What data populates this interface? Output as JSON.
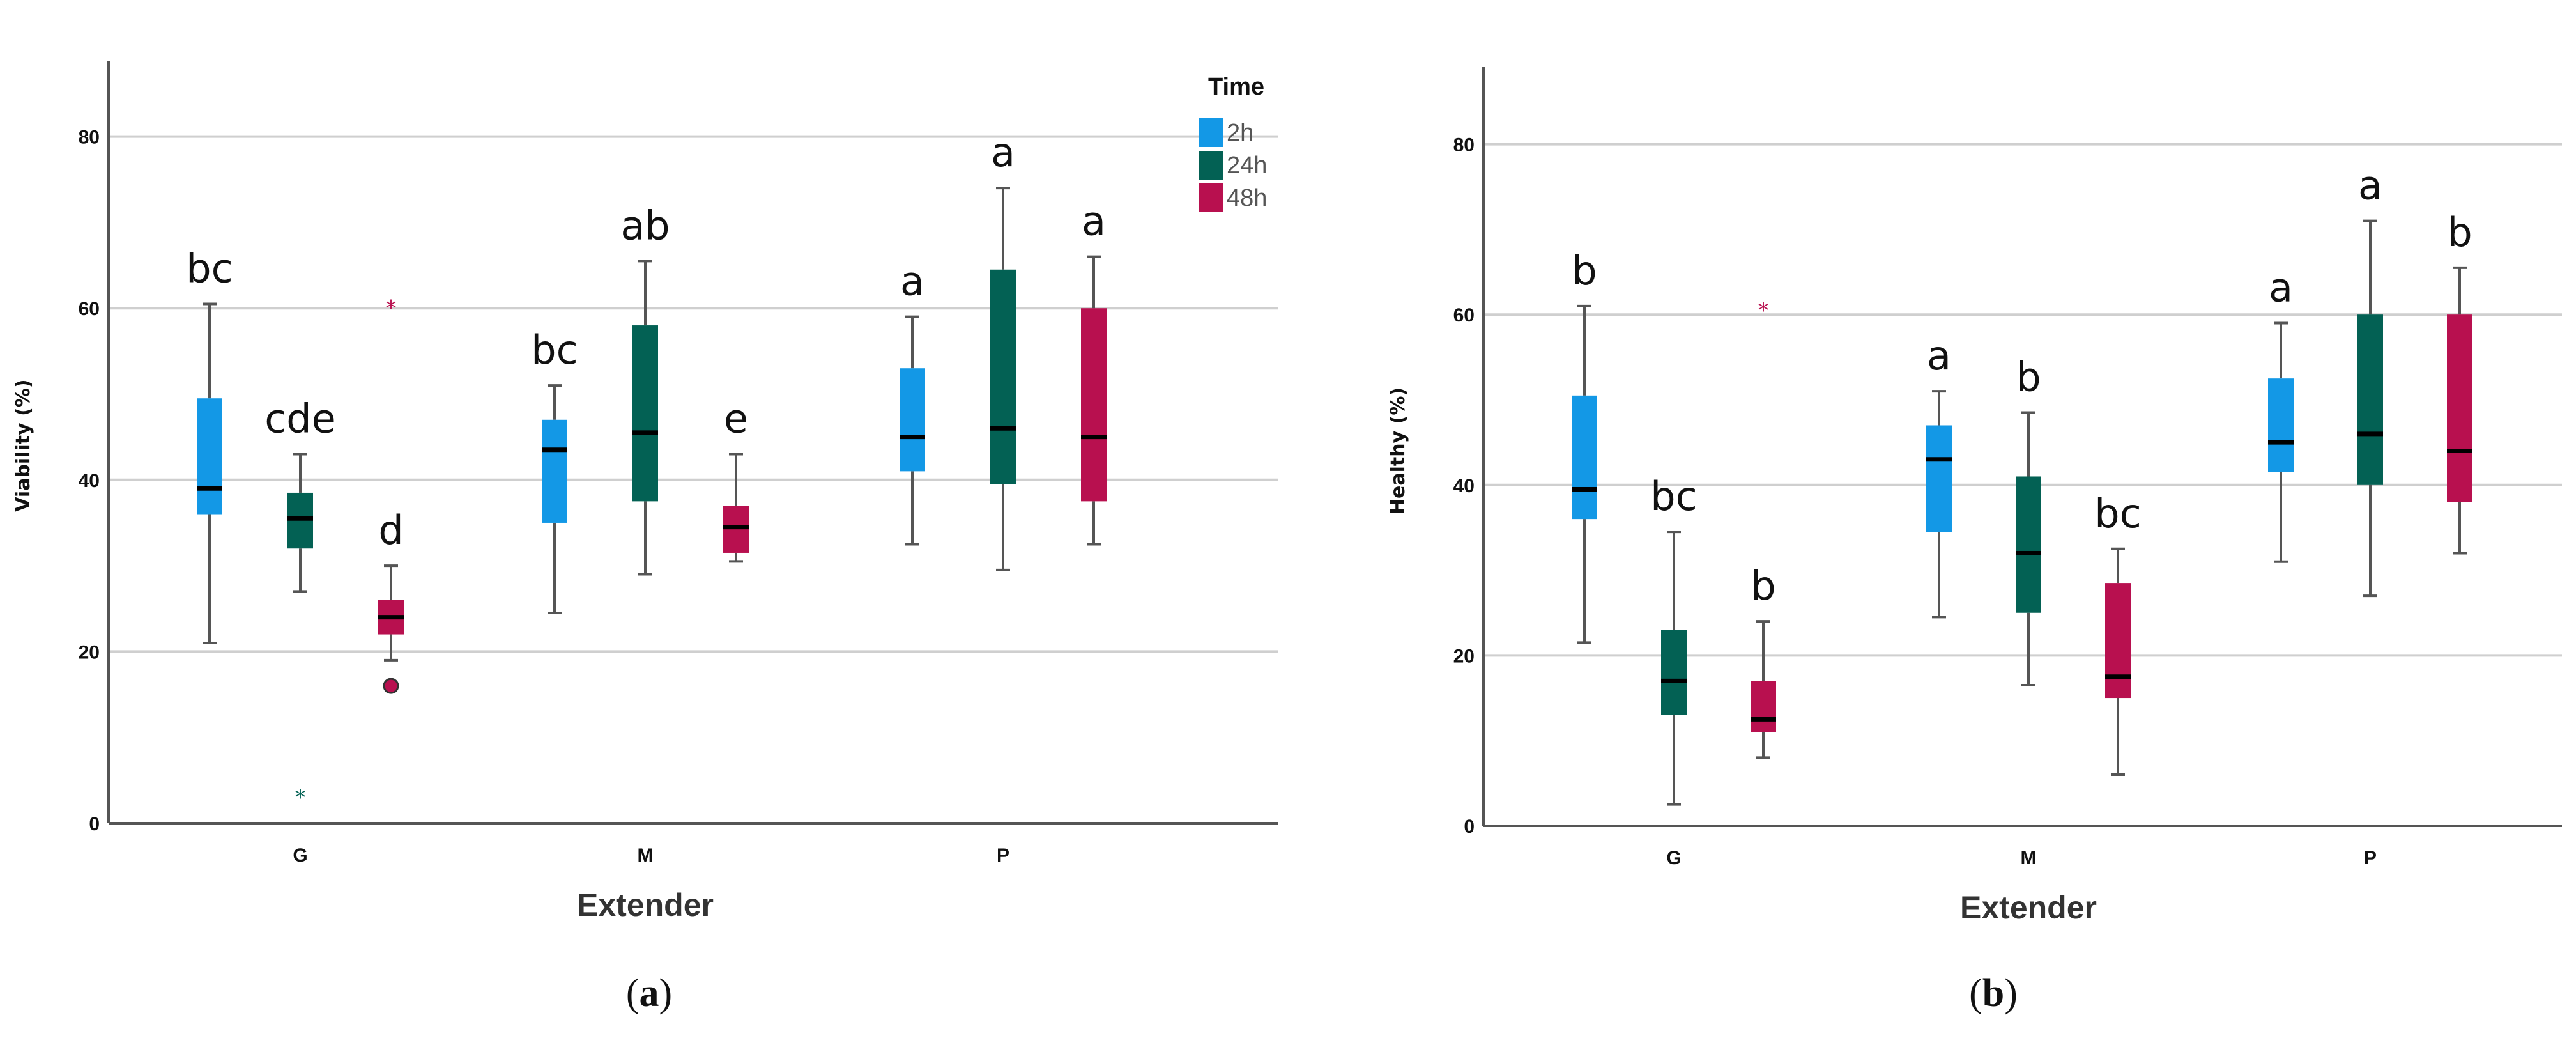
{
  "colors": {
    "2h": "#1398e6",
    "24h": "#036154",
    "48h": "#b8104f",
    "grid": "#cfcfcf",
    "axis": "#555555",
    "whisker": "#555555",
    "median": "#000000"
  },
  "legend": {
    "title": "Time",
    "items": [
      "2h",
      "24h",
      "48h"
    ]
  },
  "chart_data": [
    {
      "type": "boxplot",
      "panel_label": "a",
      "xlabel": "Extender",
      "ylabel": "Viability (%)",
      "categories": [
        "G",
        "M",
        "P"
      ],
      "ylim": [
        0,
        88
      ],
      "yticks": [
        0,
        20,
        40,
        60,
        80
      ],
      "series": [
        {
          "name": "2h",
          "boxes": [
            {
              "whisker_low": 21,
              "q1": 36,
              "median": 39,
              "q3": 49.5,
              "whisker_high": 60.5,
              "letter": "bc",
              "outliers": []
            },
            {
              "whisker_low": 24.5,
              "q1": 35,
              "median": 43.5,
              "q3": 47,
              "whisker_high": 51,
              "letter": "bc",
              "outliers": []
            },
            {
              "whisker_low": 32.5,
              "q1": 41,
              "median": 45,
              "q3": 53,
              "whisker_high": 59,
              "letter": "a",
              "outliers": []
            }
          ]
        },
        {
          "name": "24h",
          "boxes": [
            {
              "whisker_low": 27,
              "q1": 32,
              "median": 35.5,
              "q3": 38.5,
              "whisker_high": 43,
              "letter": "cde",
              "outliers": [
                {
                  "value": 3.5,
                  "marker": "*"
                }
              ]
            },
            {
              "whisker_low": 29,
              "q1": 37.5,
              "median": 45.5,
              "q3": 58,
              "whisker_high": 65.5,
              "letter": "ab",
              "outliers": []
            },
            {
              "whisker_low": 29.5,
              "q1": 39.5,
              "median": 46,
              "q3": 64.5,
              "whisker_high": 74,
              "letter": "a",
              "outliers": []
            }
          ]
        },
        {
          "name": "48h",
          "boxes": [
            {
              "whisker_low": 19,
              "q1": 22,
              "median": 24,
              "q3": 26,
              "whisker_high": 30,
              "letter": "d",
              "outliers": [
                {
                  "value": 16,
                  "marker": "o"
                },
                {
                  "value": 60.5,
                  "marker": "*"
                }
              ]
            },
            {
              "whisker_low": 30.5,
              "q1": 31.5,
              "median": 34.5,
              "q3": 37,
              "whisker_high": 43,
              "letter": "e",
              "outliers": []
            },
            {
              "whisker_low": 32.5,
              "q1": 37.5,
              "median": 45,
              "q3": 60,
              "whisker_high": 66,
              "letter": "a",
              "outliers": []
            }
          ]
        }
      ]
    },
    {
      "type": "boxplot",
      "panel_label": "b",
      "xlabel": "Extender",
      "ylabel": "Healthy (%)",
      "categories": [
        "G",
        "M",
        "P"
      ],
      "ylim": [
        0,
        88
      ],
      "yticks": [
        0,
        20,
        40,
        60,
        80
      ],
      "series": [
        {
          "name": "2h",
          "boxes": [
            {
              "whisker_low": 21.5,
              "q1": 36,
              "median": 39.5,
              "q3": 50.5,
              "whisker_high": 61,
              "letter": "b",
              "outliers": []
            },
            {
              "whisker_low": 24.5,
              "q1": 34.5,
              "median": 43,
              "q3": 47,
              "whisker_high": 51,
              "letter": "a",
              "outliers": []
            },
            {
              "whisker_low": 31,
              "q1": 41.5,
              "median": 45,
              "q3": 52.5,
              "whisker_high": 59,
              "letter": "a",
              "outliers": []
            }
          ]
        },
        {
          "name": "24h",
          "boxes": [
            {
              "whisker_low": 2.5,
              "q1": 13,
              "median": 17,
              "q3": 23,
              "whisker_high": 34.5,
              "letter": "bc",
              "outliers": []
            },
            {
              "whisker_low": 16.5,
              "q1": 25,
              "median": 32,
              "q3": 41,
              "whisker_high": 48.5,
              "letter": "b",
              "outliers": []
            },
            {
              "whisker_low": 27,
              "q1": 40,
              "median": 46,
              "q3": 60,
              "whisker_high": 71,
              "letter": "a",
              "outliers": []
            }
          ]
        },
        {
          "name": "48h",
          "boxes": [
            {
              "whisker_low": 8,
              "q1": 11,
              "median": 12.5,
              "q3": 17,
              "whisker_high": 24,
              "letter": "b",
              "outliers": [
                {
                  "value": 61,
                  "marker": "*"
                }
              ]
            },
            {
              "whisker_low": 6,
              "q1": 15,
              "median": 17.5,
              "q3": 28.5,
              "whisker_high": 32.5,
              "letter": "bc",
              "outliers": []
            },
            {
              "whisker_low": 32,
              "q1": 38,
              "median": 44,
              "q3": 60,
              "whisker_high": 65.5,
              "letter": "b",
              "outliers": []
            }
          ]
        }
      ]
    }
  ]
}
